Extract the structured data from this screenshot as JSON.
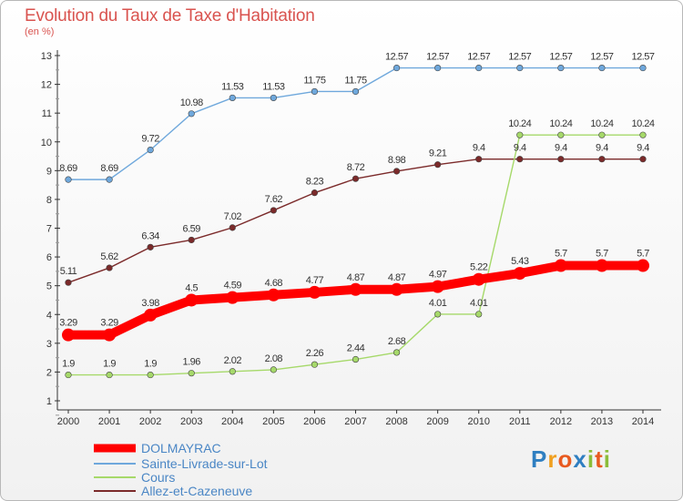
{
  "header": {
    "title": "Evolution du Taux de Taxe d'Habitation",
    "subtitle": "(en %)"
  },
  "logo": {
    "text": "Proxiti"
  },
  "chart_data": {
    "type": "line",
    "title": "Evolution du Taux de Taxe d'Habitation",
    "ylabel": "(en %)",
    "xlabel": "",
    "x": [
      "2000",
      "2001",
      "2002",
      "2003",
      "2004",
      "2005",
      "2006",
      "2007",
      "2008",
      "2009",
      "2010",
      "2011",
      "2012",
      "2013",
      "2014"
    ],
    "y_ticks": [
      "1",
      "2",
      "3",
      "4",
      "5",
      "6",
      "7",
      "8",
      "9",
      "10",
      "11",
      "12",
      "13"
    ],
    "ylim": [
      1,
      13
    ],
    "grid": false,
    "legend_position": "bottom-left",
    "series": [
      {
        "name": "DOLMAYRAC",
        "color": "#ff0000",
        "values": [
          3.29,
          3.29,
          3.98,
          4.5,
          4.59,
          4.68,
          4.77,
          4.87,
          4.87,
          4.97,
          5.22,
          5.43,
          5.7,
          5.7,
          5.7
        ],
        "labels": [
          "3.29",
          "3.29",
          "3.98",
          "4.5",
          "4.59",
          "4.68",
          "4.77",
          "4.87",
          "4.87",
          "4.97",
          "5.22",
          "5.43",
          "5.7",
          "5.7",
          "5.7"
        ]
      },
      {
        "name": "Sainte-Livrade-sur-Lot",
        "color": "#6fa8dc",
        "values": [
          8.69,
          8.69,
          9.72,
          10.98,
          11.53,
          11.53,
          11.75,
          11.75,
          12.57,
          12.57,
          12.57,
          12.57,
          12.57,
          12.57,
          12.57
        ],
        "labels": [
          "8.69",
          "8.69",
          "9.72",
          "10.98",
          "11.53",
          "11.53",
          "11.75",
          "11.75",
          "12.57",
          "12.57",
          "12.57",
          "12.57",
          "12.57",
          "12.57",
          "12.57"
        ]
      },
      {
        "name": "Cours",
        "color": "#a6d96a",
        "values": [
          1.9,
          1.9,
          1.9,
          1.96,
          2.02,
          2.08,
          2.26,
          2.44,
          2.68,
          4.01,
          4.01,
          10.24,
          10.24,
          10.24,
          10.24
        ],
        "labels": [
          "1.9",
          "1.9",
          "1.9",
          "1.96",
          "2.02",
          "2.08",
          "2.26",
          "2.44",
          "2.68",
          "4.01",
          "4.01",
          "10.24",
          "10.24",
          "10.24",
          "10.24"
        ]
      },
      {
        "name": "Allez-et-Cazeneuve",
        "color": "#7b2a2a",
        "values": [
          5.11,
          5.62,
          6.34,
          6.59,
          7.02,
          7.62,
          8.23,
          8.72,
          8.98,
          9.21,
          9.4,
          9.4,
          9.4,
          9.4,
          9.4
        ],
        "labels": [
          "5.11",
          "5.62",
          "6.34",
          "6.59",
          "7.02",
          "7.62",
          "8.23",
          "8.72",
          "8.98",
          "9.21",
          "9.4",
          "9.4",
          "9.4",
          "9.4",
          "9.4"
        ]
      }
    ]
  }
}
